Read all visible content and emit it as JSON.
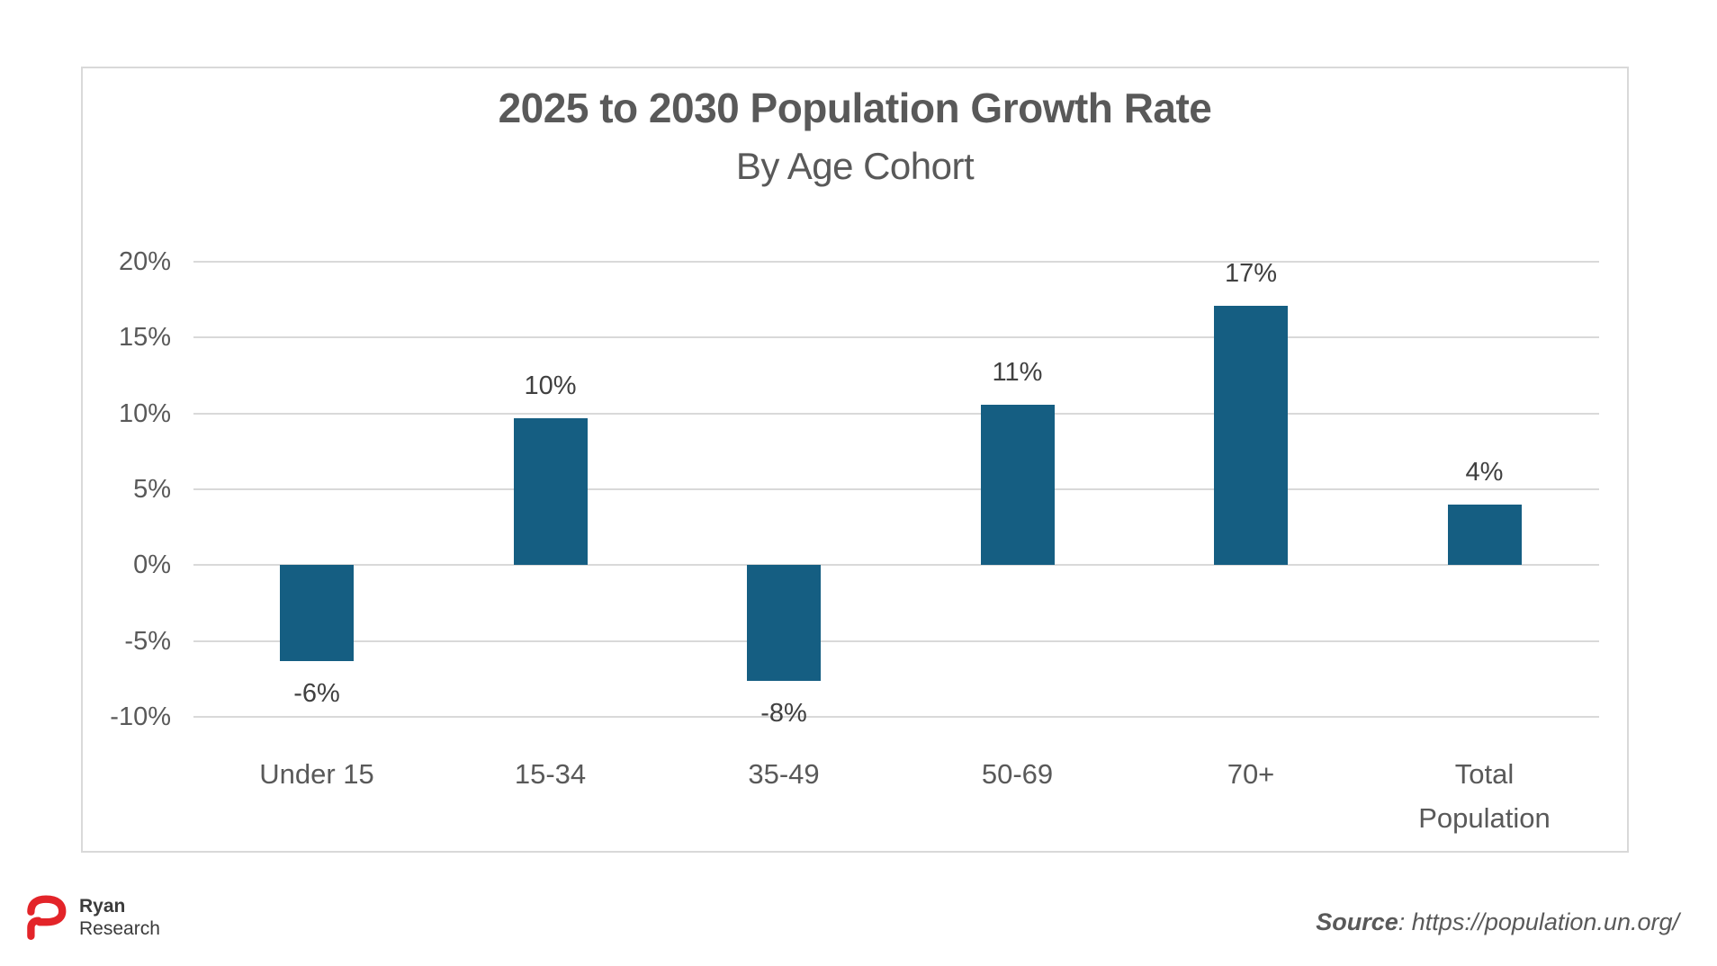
{
  "chart_data": {
    "type": "bar",
    "title": "2025 to 2030 Population Growth Rate",
    "subtitle": "By Age Cohort",
    "categories": [
      "Under 15",
      "15-34",
      "35-49",
      "50-69",
      "70+",
      "Total Population"
    ],
    "values": [
      -6.3,
      9.7,
      -7.6,
      10.6,
      17.1,
      4.0
    ],
    "labels": [
      "-6%",
      "10%",
      "-8%",
      "11%",
      "17%",
      "4%"
    ],
    "y_ticks": [
      20,
      15,
      10,
      5,
      0,
      -5,
      -10
    ],
    "y_tick_labels": [
      "20%",
      "15%",
      "10%",
      "5%",
      "0%",
      "-5%",
      "-10%"
    ],
    "ylim": [
      -10,
      20
    ],
    "grid": true,
    "legend": false,
    "bar_color": "#155E82",
    "grid_color": "#D9D9D9"
  },
  "footer": {
    "logo": {
      "line1": "Ryan",
      "line2": "Research",
      "brand_color": "#E32429"
    },
    "source_label": "Source",
    "source_rest": ": https://population.un.org/"
  }
}
